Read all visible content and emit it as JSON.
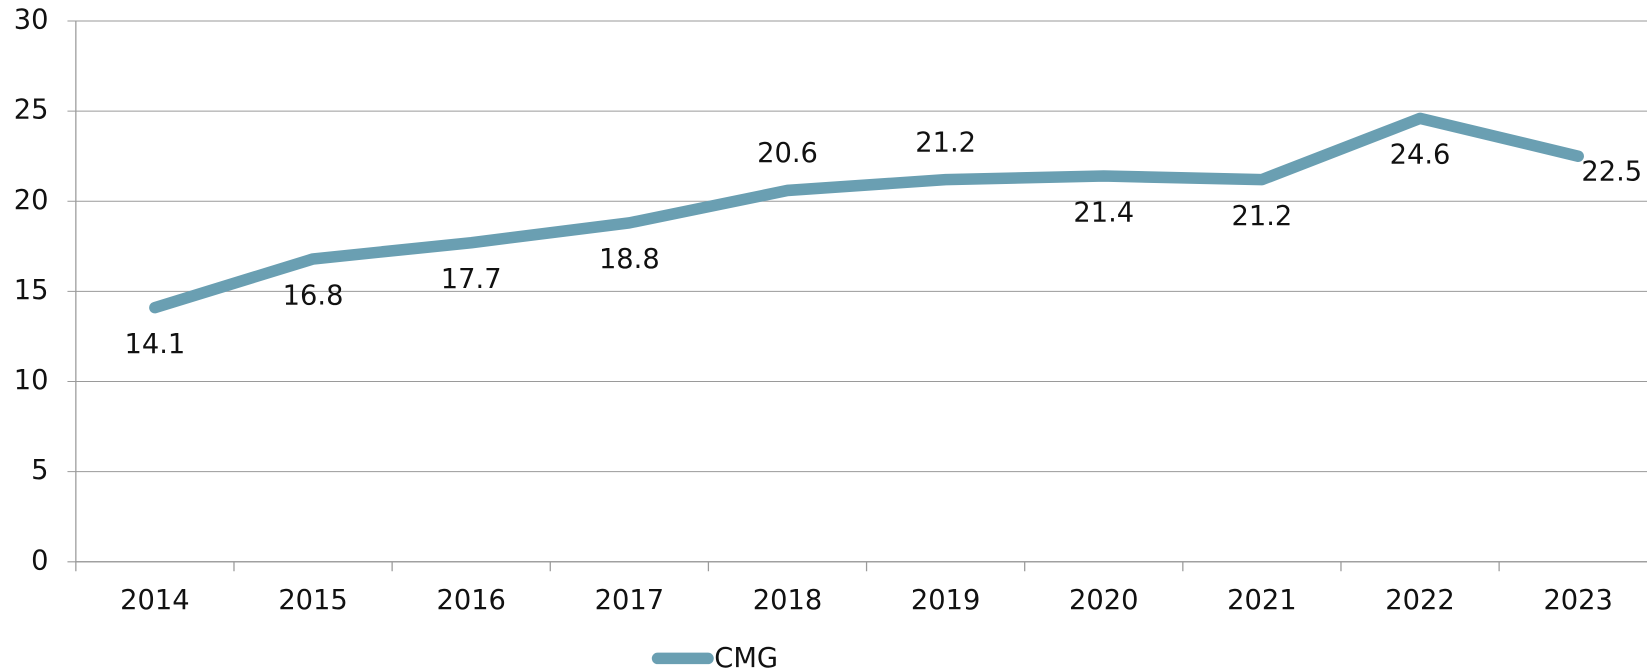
{
  "chart_data": {
    "type": "line",
    "categories": [
      "2014",
      "2015",
      "2016",
      "2017",
      "2018",
      "2019",
      "2020",
      "2021",
      "2022",
      "2023"
    ],
    "series": [
      {
        "name": "CMG",
        "color": "#6a9fb2",
        "values": [
          14.1,
          16.8,
          17.7,
          18.8,
          20.6,
          21.2,
          21.4,
          21.2,
          24.6,
          22.5
        ]
      }
    ],
    "ylim": [
      0,
      30
    ],
    "yticks": [
      0,
      5,
      10,
      15,
      20,
      25,
      30
    ],
    "grid": true,
    "legend": "bottom"
  }
}
